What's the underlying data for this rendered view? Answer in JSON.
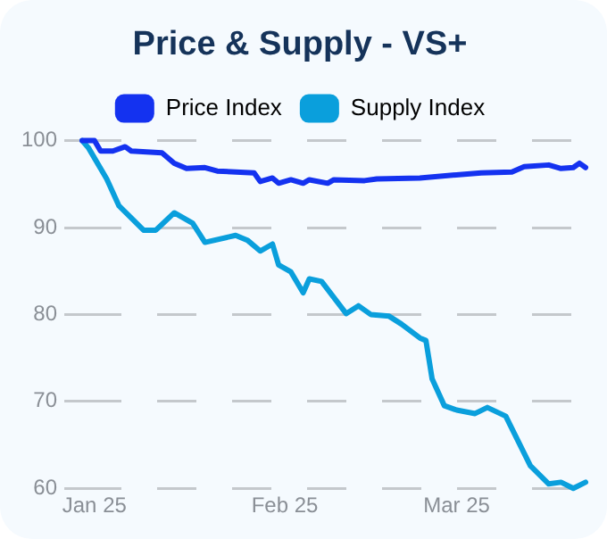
{
  "chart_data": {
    "type": "line",
    "title": "Price & Supply - VS+",
    "series": [
      {
        "name": "Price Index",
        "color": "#1432f0",
        "x": [
          "2024-12-30",
          "2025-01-01",
          "2025-01-02",
          "2025-01-04",
          "2025-01-06",
          "2025-01-07",
          "2025-01-12",
          "2025-01-14",
          "2025-01-16",
          "2025-01-19",
          "2025-01-21",
          "2025-01-27",
          "2025-01-28",
          "2025-01-30",
          "2025-01-31",
          "2025-02-02",
          "2025-02-04",
          "2025-02-05",
          "2025-02-08",
          "2025-02-09",
          "2025-02-14",
          "2025-02-16",
          "2025-02-23",
          "2025-03-05",
          "2025-03-10",
          "2025-03-12",
          "2025-03-16",
          "2025-03-18",
          "2025-03-20",
          "2025-03-21",
          "2025-03-22"
        ],
        "values": [
          100,
          100,
          98.8,
          98.8,
          99.3,
          98.8,
          98.6,
          97.4,
          96.8,
          96.9,
          96.5,
          96.3,
          95.3,
          95.7,
          95.1,
          95.5,
          95.1,
          95.5,
          95.1,
          95.5,
          95.4,
          95.6,
          95.7,
          96.3,
          96.4,
          97.0,
          97.2,
          96.8,
          96.9,
          97.4,
          96.9
        ]
      },
      {
        "name": "Supply Index",
        "color": "#0a9fdc",
        "x": [
          "2024-12-30",
          "2024-12-31",
          "2025-01-03",
          "2025-01-05",
          "2025-01-09",
          "2025-01-11",
          "2025-01-14",
          "2025-01-17",
          "2025-01-19",
          "2025-01-24",
          "2025-01-26",
          "2025-01-28",
          "2025-01-30",
          "2025-01-31",
          "2025-02-02",
          "2025-02-04",
          "2025-02-05",
          "2025-02-07",
          "2025-02-11",
          "2025-02-13",
          "2025-02-15",
          "2025-02-18",
          "2025-02-20",
          "2025-02-23",
          "2025-02-24",
          "2025-02-25",
          "2025-02-27",
          "2025-03-01",
          "2025-03-04",
          "2025-03-06",
          "2025-03-09",
          "2025-03-13",
          "2025-03-16",
          "2025-03-18",
          "2025-03-20",
          "2025-03-22"
        ],
        "values": [
          100,
          99.2,
          95.6,
          92.5,
          89.7,
          89.7,
          91.7,
          90.5,
          88.3,
          89.1,
          88.5,
          87.3,
          88.1,
          85.7,
          84.9,
          82.5,
          84.1,
          83.8,
          80.1,
          81.0,
          80.0,
          79.8,
          78.9,
          77.3,
          77.0,
          72.6,
          69.5,
          69.0,
          68.6,
          69.3,
          68.3,
          62.6,
          60.5,
          60.7,
          60.0,
          60.7
        ]
      }
    ],
    "xlim": [
      "2024-12-30",
      "2025-03-22"
    ],
    "xticks": [
      {
        "value": "2025-01-01",
        "label": "Jan 25"
      },
      {
        "value": "2025-02-01",
        "label": "Feb 25"
      },
      {
        "value": "2025-03-01",
        "label": "Mar 25"
      }
    ],
    "ylim": [
      60,
      100
    ],
    "yticks": [
      60,
      70,
      80,
      90,
      100
    ],
    "grid": "y",
    "legend": "top",
    "marker": "none",
    "line_style": "solid"
  }
}
